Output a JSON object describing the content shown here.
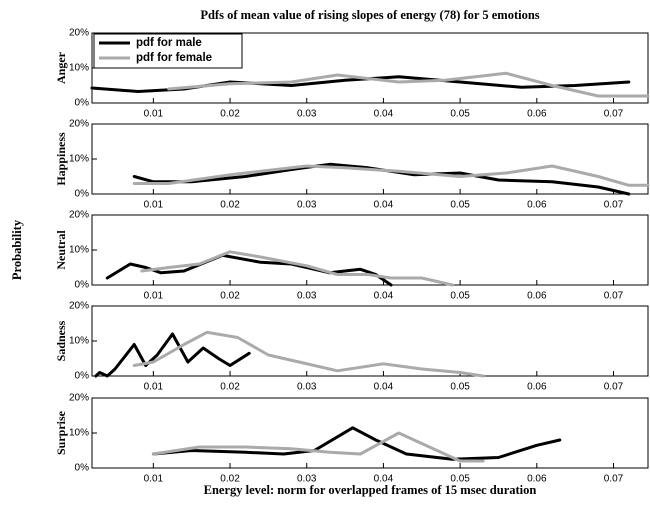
{
  "chart_data": [
    {
      "type": "line",
      "title": "Pdfs of mean value of rising slopes of energy (78) for 5 emotions",
      "common_ylabel": "Probability",
      "ylabel": "Anger",
      "legend": "upper left",
      "xlim": [
        0.002,
        0.0745
      ],
      "xticks": [
        0.01,
        0.02,
        0.03,
        0.04,
        0.05,
        0.06,
        0.07
      ],
      "ylim": [
        0,
        20
      ],
      "yticks": [
        {
          "value": 0,
          "label": "0%"
        },
        {
          "value": 10,
          "label": "10%"
        },
        {
          "value": 20,
          "label": "20%"
        }
      ],
      "series": [
        {
          "name": "pdf for male",
          "color": "#000000",
          "x": [
            0.002,
            0.008,
            0.014,
            0.02,
            0.028,
            0.035,
            0.042,
            0.05,
            0.058,
            0.065,
            0.072
          ],
          "values": [
            4.3,
            3.3,
            4,
            6,
            5,
            6.5,
            7.5,
            6,
            4.5,
            5,
            6
          ]
        },
        {
          "name": "pdf for female",
          "color": "#aaaaaa",
          "x": [
            0.012,
            0.02,
            0.028,
            0.034,
            0.042,
            0.048,
            0.056,
            0.062,
            0.068,
            0.0745
          ],
          "values": [
            4,
            5.5,
            6,
            8,
            6,
            6.5,
            8.5,
            5,
            2,
            2
          ]
        }
      ]
    },
    {
      "type": "line",
      "ylabel": "Happiness",
      "xlim": [
        0.002,
        0.0745
      ],
      "xticks": [
        0.01,
        0.02,
        0.03,
        0.04,
        0.05,
        0.06,
        0.07
      ],
      "ylim": [
        0,
        20
      ],
      "yticks": [
        {
          "value": 0,
          "label": "0%"
        },
        {
          "value": 10,
          "label": "10%"
        },
        {
          "value": 20,
          "label": "20%"
        }
      ],
      "series": [
        {
          "color": "#000000",
          "x": [
            0.0075,
            0.01,
            0.015,
            0.022,
            0.028,
            0.033,
            0.038,
            0.044,
            0.05,
            0.055,
            0.062,
            0.068,
            0.072
          ],
          "values": [
            5,
            3.5,
            3.5,
            5,
            7,
            8.5,
            7.5,
            5.5,
            6,
            4,
            3.5,
            2,
            0
          ]
        },
        {
          "color": "#aaaaaa",
          "x": [
            0.0075,
            0.012,
            0.02,
            0.03,
            0.035,
            0.042,
            0.05,
            0.056,
            0.062,
            0.068,
            0.072,
            0.0745
          ],
          "values": [
            3,
            3,
            5.5,
            8,
            7.5,
            6.5,
            5,
            6,
            8,
            5,
            2.5,
            2.5
          ]
        }
      ]
    },
    {
      "type": "line",
      "ylabel": "Neutral",
      "xlim": [
        0.002,
        0.0745
      ],
      "xticks": [
        0.01,
        0.02,
        0.03,
        0.04,
        0.05,
        0.06,
        0.07
      ],
      "ylim": [
        0,
        20
      ],
      "yticks": [
        {
          "value": 0,
          "label": "0%"
        },
        {
          "value": 10,
          "label": "10%"
        },
        {
          "value": 20,
          "label": "20%"
        }
      ],
      "series": [
        {
          "color": "#000000",
          "x": [
            0.004,
            0.007,
            0.009,
            0.011,
            0.014,
            0.019,
            0.024,
            0.028,
            0.033,
            0.037,
            0.039,
            0.041
          ],
          "values": [
            2,
            6,
            5,
            3.5,
            4,
            8.5,
            6.5,
            6,
            3.5,
            4.5,
            3,
            0
          ]
        },
        {
          "color": "#aaaaaa",
          "x": [
            0.0085,
            0.012,
            0.016,
            0.02,
            0.024,
            0.03,
            0.034,
            0.038,
            0.041,
            0.045,
            0.049
          ],
          "values": [
            4,
            5,
            6,
            9.5,
            8,
            5.5,
            3,
            3,
            2,
            2,
            0
          ]
        }
      ]
    },
    {
      "type": "line",
      "ylabel": "Sadness",
      "xlim": [
        0.002,
        0.0745
      ],
      "xticks": [
        0.01,
        0.02,
        0.03,
        0.04,
        0.05,
        0.06,
        0.07
      ],
      "ylim": [
        0,
        20
      ],
      "yticks": [
        {
          "value": 0,
          "label": "0%"
        },
        {
          "value": 10,
          "label": "10%"
        },
        {
          "value": 20,
          "label": "20%"
        }
      ],
      "series": [
        {
          "color": "#000000",
          "x": [
            0.0025,
            0.003,
            0.004,
            0.005,
            0.0075,
            0.009,
            0.0105,
            0.0125,
            0.0145,
            0.0165,
            0.0185,
            0.02,
            0.0225
          ],
          "values": [
            0,
            1,
            0,
            2,
            9,
            3,
            6,
            12,
            4,
            8,
            5,
            3,
            6.5
          ]
        },
        {
          "color": "#aaaaaa",
          "x": [
            0.0075,
            0.01,
            0.014,
            0.017,
            0.021,
            0.025,
            0.029,
            0.034,
            0.04,
            0.045,
            0.05,
            0.053
          ],
          "values": [
            3,
            4,
            9,
            12.5,
            11,
            6,
            4,
            1.5,
            3.5,
            2,
            1,
            0
          ]
        }
      ]
    },
    {
      "type": "line",
      "ylabel": "Surprise",
      "xlabel": "Energy level: norm for overlapped frames of 15 msec duration",
      "xlim": [
        0.002,
        0.0745
      ],
      "xticks": [
        0.01,
        0.02,
        0.03,
        0.04,
        0.05,
        0.06,
        0.07
      ],
      "ylim": [
        0,
        20
      ],
      "yticks": [
        {
          "value": 0,
          "label": "0%"
        },
        {
          "value": 10,
          "label": "10%"
        },
        {
          "value": 20,
          "label": "20%"
        }
      ],
      "series": [
        {
          "color": "#000000",
          "x": [
            0.01,
            0.015,
            0.022,
            0.027,
            0.031,
            0.036,
            0.039,
            0.043,
            0.049,
            0.055,
            0.06,
            0.063
          ],
          "values": [
            4,
            5,
            4.5,
            4,
            5,
            11.5,
            8,
            4,
            2.5,
            3,
            6.5,
            8
          ]
        },
        {
          "color": "#aaaaaa",
          "x": [
            0.01,
            0.016,
            0.022,
            0.028,
            0.033,
            0.037,
            0.042,
            0.046,
            0.05,
            0.053
          ],
          "values": [
            4,
            6,
            6,
            5.5,
            4.5,
            4,
            10,
            6,
            2,
            2
          ]
        }
      ]
    }
  ]
}
